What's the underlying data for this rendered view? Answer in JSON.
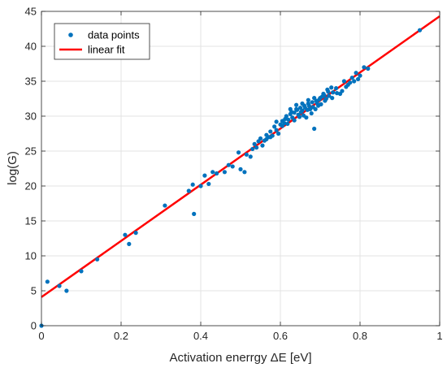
{
  "chart_data": {
    "type": "scatter",
    "title": "",
    "xlabel": "Activation enerrgy ΔE [eV]",
    "ylabel": "log(G)",
    "xlim": [
      0,
      1
    ],
    "ylim": [
      0,
      45
    ],
    "xticks": [
      0,
      0.2,
      0.4,
      0.6,
      0.8,
      1
    ],
    "xtick_labels": [
      "0",
      "0.2",
      "0.4",
      "0.6",
      "0.8",
      "1"
    ],
    "yticks": [
      0,
      5,
      10,
      15,
      20,
      25,
      30,
      35,
      40,
      45
    ],
    "ytick_labels": [
      "0",
      "5",
      "10",
      "15",
      "20",
      "25",
      "30",
      "35",
      "40",
      "45"
    ],
    "grid": true,
    "legend_position": "top-left",
    "series": [
      {
        "name": "data points",
        "kind": "markers",
        "color": "#0072BD",
        "points": [
          [
            0.0,
            0.0
          ],
          [
            0.015,
            6.3
          ],
          [
            0.045,
            5.7
          ],
          [
            0.063,
            5.0
          ],
          [
            0.1,
            7.8
          ],
          [
            0.14,
            9.5
          ],
          [
            0.21,
            13.0
          ],
          [
            0.22,
            11.7
          ],
          [
            0.237,
            13.3
          ],
          [
            0.31,
            17.2
          ],
          [
            0.37,
            19.3
          ],
          [
            0.38,
            20.2
          ],
          [
            0.383,
            16.0
          ],
          [
            0.4,
            20.0
          ],
          [
            0.41,
            21.5
          ],
          [
            0.42,
            20.3
          ],
          [
            0.43,
            22.0
          ],
          [
            0.44,
            21.8
          ],
          [
            0.46,
            22.0
          ],
          [
            0.47,
            23.0
          ],
          [
            0.48,
            22.8
          ],
          [
            0.495,
            24.8
          ],
          [
            0.5,
            22.4
          ],
          [
            0.51,
            22.0
          ],
          [
            0.515,
            24.5
          ],
          [
            0.525,
            24.2
          ],
          [
            0.53,
            25.3
          ],
          [
            0.535,
            26.0
          ],
          [
            0.54,
            25.5
          ],
          [
            0.55,
            26.8
          ],
          [
            0.56,
            26.5
          ],
          [
            0.565,
            27.3
          ],
          [
            0.57,
            27.0
          ],
          [
            0.575,
            27.8
          ],
          [
            0.58,
            27.2
          ],
          [
            0.585,
            28.5
          ],
          [
            0.59,
            28.0
          ],
          [
            0.595,
            27.5
          ],
          [
            0.6,
            28.8
          ],
          [
            0.605,
            29.3
          ],
          [
            0.61,
            29.0
          ],
          [
            0.615,
            30.0
          ],
          [
            0.62,
            29.5
          ],
          [
            0.625,
            30.3
          ],
          [
            0.63,
            29.8
          ],
          [
            0.635,
            30.5
          ],
          [
            0.64,
            31.0
          ],
          [
            0.645,
            30.2
          ],
          [
            0.65,
            31.2
          ],
          [
            0.655,
            30.8
          ],
          [
            0.66,
            31.5
          ],
          [
            0.665,
            29.8
          ],
          [
            0.67,
            31.8
          ],
          [
            0.675,
            31.0
          ],
          [
            0.68,
            32.0
          ],
          [
            0.685,
            28.2
          ],
          [
            0.69,
            32.2
          ],
          [
            0.695,
            31.5
          ],
          [
            0.7,
            32.6
          ],
          [
            0.705,
            32.8
          ],
          [
            0.71,
            33.0
          ],
          [
            0.715,
            32.5
          ],
          [
            0.72,
            33.5
          ],
          [
            0.73,
            32.6
          ],
          [
            0.74,
            34.0
          ],
          [
            0.75,
            33.2
          ],
          [
            0.76,
            35.0
          ],
          [
            0.77,
            34.5
          ],
          [
            0.78,
            35.5
          ],
          [
            0.79,
            36.2
          ],
          [
            0.8,
            35.8
          ],
          [
            0.81,
            37.0
          ],
          [
            0.82,
            36.8
          ],
          [
            0.95,
            42.3
          ],
          [
            0.612,
            29.6
          ],
          [
            0.628,
            30.6
          ],
          [
            0.642,
            30.9
          ],
          [
            0.652,
            30.6
          ],
          [
            0.662,
            31.2
          ],
          [
            0.672,
            31.5
          ],
          [
            0.682,
            31.3
          ],
          [
            0.692,
            31.9
          ],
          [
            0.702,
            31.7
          ],
          [
            0.712,
            32.2
          ],
          [
            0.722,
            32.9
          ],
          [
            0.732,
            33.4
          ],
          [
            0.742,
            33.3
          ],
          [
            0.605,
            28.6
          ],
          [
            0.618,
            28.9
          ],
          [
            0.635,
            29.4
          ],
          [
            0.648,
            29.9
          ],
          [
            0.658,
            30.1
          ],
          [
            0.668,
            30.9
          ],
          [
            0.678,
            30.4
          ],
          [
            0.688,
            31.0
          ],
          [
            0.698,
            32.4
          ],
          [
            0.708,
            33.2
          ],
          [
            0.718,
            33.8
          ],
          [
            0.728,
            34.1
          ],
          [
            0.625,
            31.0
          ],
          [
            0.64,
            31.6
          ],
          [
            0.655,
            31.8
          ],
          [
            0.67,
            32.3
          ],
          [
            0.685,
            32.6
          ],
          [
            0.59,
            29.2
          ],
          [
            0.575,
            27.0
          ],
          [
            0.565,
            26.7
          ],
          [
            0.545,
            26.4
          ],
          [
            0.555,
            25.8
          ],
          [
            0.785,
            35.0
          ],
          [
            0.795,
            35.3
          ],
          [
            0.775,
            34.8
          ],
          [
            0.765,
            34.2
          ],
          [
            0.755,
            33.6
          ]
        ]
      },
      {
        "name": "linear fit",
        "kind": "line",
        "color": "#FF0000",
        "intercept": 4.1,
        "slope": 40.2,
        "x": [
          0,
          1
        ],
        "y": [
          4.1,
          44.3
        ]
      }
    ]
  }
}
